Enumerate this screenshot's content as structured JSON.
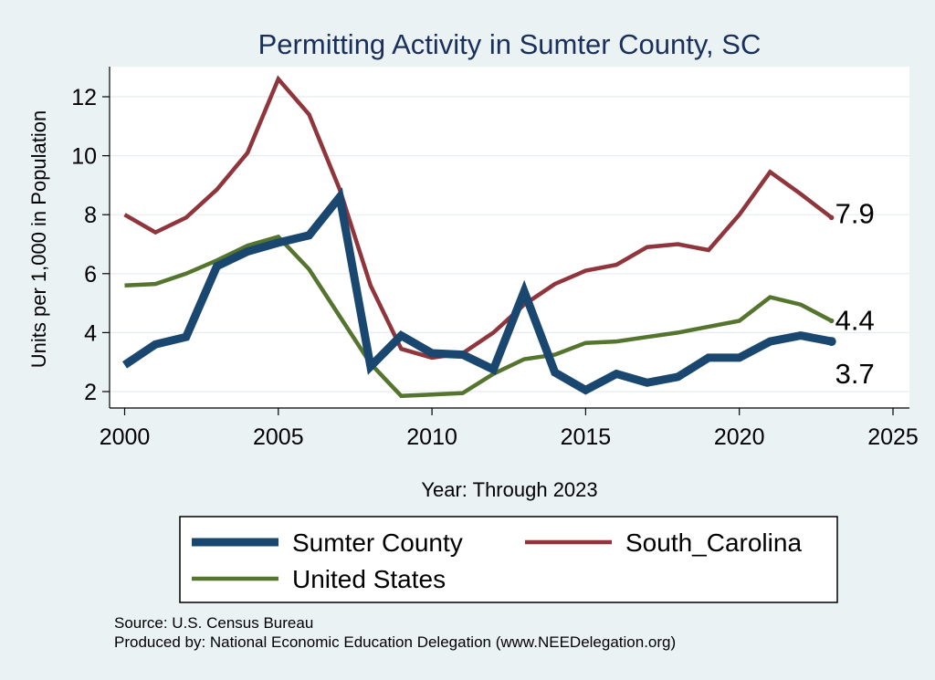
{
  "chart_data": {
    "type": "line",
    "title": "Permitting Activity in Sumter County, SC",
    "xlabel": "Year: Through 2023",
    "ylabel": "Units per 1,000 in Population",
    "xlim": [
      2000,
      2025
    ],
    "ylim": [
      1.5,
      13
    ],
    "x_ticks": [
      2000,
      2005,
      2010,
      2015,
      2020,
      2025
    ],
    "y_ticks": [
      2,
      4,
      6,
      8,
      10,
      12
    ],
    "grid": "horizontal",
    "x": [
      2000,
      2001,
      2002,
      2003,
      2004,
      2005,
      2006,
      2007,
      2008,
      2009,
      2010,
      2011,
      2012,
      2013,
      2014,
      2015,
      2016,
      2017,
      2018,
      2019,
      2020,
      2021,
      2022,
      2023
    ],
    "series": [
      {
        "name": "Sumter County",
        "color": "#1a476f",
        "stroke": "thick",
        "values": [
          2.9,
          3.6,
          3.85,
          6.25,
          6.75,
          7.05,
          7.3,
          8.6,
          2.85,
          3.9,
          3.3,
          3.25,
          2.75,
          5.4,
          2.65,
          2.05,
          2.6,
          2.3,
          2.5,
          3.15,
          3.15,
          3.7,
          3.9,
          3.7
        ],
        "end_label": "3.7"
      },
      {
        "name": "South_Carolina",
        "color": "#90353b",
        "stroke": "medium",
        "values": [
          8.0,
          7.4,
          7.9,
          8.85,
          10.1,
          12.6,
          11.4,
          8.85,
          5.6,
          3.45,
          3.15,
          3.3,
          4.0,
          4.95,
          5.65,
          6.1,
          6.3,
          6.9,
          7.0,
          6.8,
          8.0,
          9.45,
          8.7,
          7.9
        ],
        "end_label": "7.9"
      },
      {
        "name": "United States",
        "color": "#55752f",
        "stroke": "medium",
        "values": [
          5.6,
          5.65,
          6.0,
          6.45,
          6.95,
          7.25,
          6.15,
          4.55,
          2.95,
          1.85,
          1.9,
          1.95,
          2.6,
          3.1,
          3.25,
          3.65,
          3.7,
          3.85,
          4.0,
          4.2,
          4.4,
          5.2,
          4.95,
          4.4
        ],
        "end_label": "4.4"
      }
    ],
    "legend": {
      "placement": "bottom",
      "order": [
        "Sumter County",
        "South_Carolina",
        "United States"
      ]
    },
    "notes": [
      "Source: U.S. Census Bureau",
      "Produced by: National Economic Education Delegation (www.NEEDelegation.org)"
    ]
  }
}
